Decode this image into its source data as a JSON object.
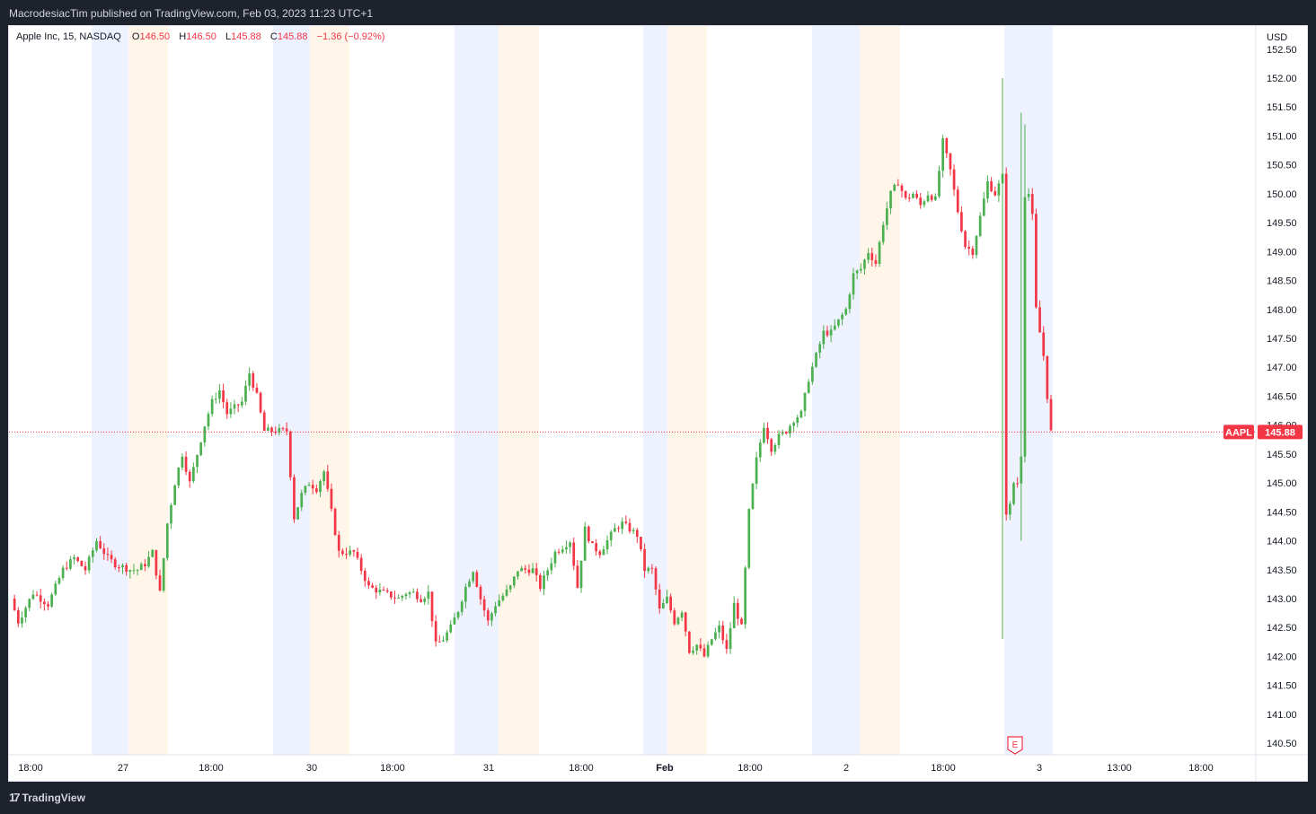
{
  "header": {
    "publish_text": "MacrodesiacTim published on TradingView.com, Feb 03, 2023 11:23 UTC+1"
  },
  "legend": {
    "symbol": "Apple Inc, 15, NASDAQ",
    "open_label": "O",
    "open": "146.50",
    "high_label": "H",
    "high": "146.50",
    "low_label": "L",
    "low": "145.88",
    "close_label": "C",
    "close": "145.88",
    "change": "−1.36 (−0.92%)"
  },
  "footer": {
    "brand": "TradingView",
    "brand_mark": "17"
  },
  "colors": {
    "up": "#26a69a",
    "up_candle": "#4caf50",
    "down": "#f23645",
    "premarket_band": "#eef2ff",
    "afterhours_band": "#fff6e9",
    "axis_text": "#131722",
    "price_line": "#f23645"
  },
  "chart_data": {
    "type": "candlestick",
    "symbol": "AAPL",
    "interval": "15",
    "exchange": "NASDAQ",
    "currency": "USD",
    "ylim": [
      140.3,
      152.9
    ],
    "y_ticks": [
      "140.50",
      "141.00",
      "141.50",
      "142.00",
      "142.50",
      "143.00",
      "143.50",
      "144.00",
      "144.50",
      "145.00",
      "145.50",
      "146.00",
      "146.50",
      "147.00",
      "147.50",
      "148.00",
      "148.50",
      "149.00",
      "149.50",
      "150.00",
      "150.50",
      "151.00",
      "151.50",
      "152.00",
      "152.50"
    ],
    "x_ticks": [
      "18:00",
      "27",
      "18:00",
      "30",
      "18:00",
      "31",
      "18:00",
      "Feb",
      "18:00",
      "2",
      "18:00",
      "3",
      "13:00",
      "18:00"
    ],
    "bold_x_ticks": [
      "Feb"
    ],
    "last_price": 145.88,
    "last_price_label": "145.88",
    "symbol_label": "AAPL",
    "earnings_marker": "E",
    "grid": false,
    "sessions": [
      {
        "type": "premarket",
        "from": "Jan 27 04:00",
        "to": "Jan 27 09:30"
      },
      {
        "type": "afterhours",
        "from": "Jan 27 16:00",
        "to": "Jan 27 20:00"
      },
      {
        "type": "premarket",
        "from": "Jan 30 04:00",
        "to": "Jan 30 09:30"
      },
      {
        "type": "afterhours",
        "from": "Jan 30 16:00",
        "to": "Jan 30 20:00"
      },
      {
        "type": "premarket",
        "from": "Jan 31 04:00",
        "to": "Jan 31 09:30"
      },
      {
        "type": "afterhours",
        "from": "Jan 31 16:00",
        "to": "Jan 31 20:00"
      },
      {
        "type": "premarket",
        "from": "Feb 1 04:00",
        "to": "Feb 1 09:30"
      },
      {
        "type": "afterhours",
        "from": "Feb 1 16:00",
        "to": "Feb 1 20:00"
      },
      {
        "type": "premarket",
        "from": "Feb 2 04:00",
        "to": "Feb 2 09:30"
      },
      {
        "type": "afterhours",
        "from": "Feb 2 16:00",
        "to": "Feb 2 20:00"
      },
      {
        "type": "premarket",
        "from": "Feb 3 04:00",
        "to": "Feb 3 09:30"
      }
    ],
    "path_points": [
      [
        0,
        143.0
      ],
      [
        2,
        142.6
      ],
      [
        6,
        143.1
      ],
      [
        10,
        142.9
      ],
      [
        14,
        143.5
      ],
      [
        17,
        143.7
      ],
      [
        20,
        143.5
      ],
      [
        23,
        144.0
      ],
      [
        26,
        143.7
      ],
      [
        28,
        143.6
      ],
      [
        32,
        143.5
      ],
      [
        34,
        143.5
      ],
      [
        36,
        143.6
      ],
      [
        38,
        143.8
      ],
      [
        40,
        143.1
      ],
      [
        42,
        144.3
      ],
      [
        44,
        145.0
      ],
      [
        46,
        145.5
      ],
      [
        48,
        145.0
      ],
      [
        52,
        146.0
      ],
      [
        54,
        146.4
      ],
      [
        56,
        146.6
      ],
      [
        58,
        146.2
      ],
      [
        62,
        146.4
      ],
      [
        64,
        146.9
      ],
      [
        66,
        146.5
      ],
      [
        68,
        145.9
      ],
      [
        70,
        145.9
      ],
      [
        72,
        145.9
      ],
      [
        74,
        145.9
      ],
      [
        76,
        144.4
      ],
      [
        78,
        144.8
      ],
      [
        80,
        145.0
      ],
      [
        82,
        144.9
      ],
      [
        84,
        145.2
      ],
      [
        86,
        144.5
      ],
      [
        88,
        143.8
      ],
      [
        92,
        143.8
      ],
      [
        94,
        143.5
      ],
      [
        96,
        143.2
      ],
      [
        100,
        143.1
      ],
      [
        104,
        143.0
      ],
      [
        106,
        143.1
      ],
      [
        108,
        143.1
      ],
      [
        110,
        143.0
      ],
      [
        112,
        143.1
      ],
      [
        114,
        142.2
      ],
      [
        116,
        142.3
      ],
      [
        118,
        142.5
      ],
      [
        120,
        142.8
      ],
      [
        122,
        143.2
      ],
      [
        124,
        143.5
      ],
      [
        126,
        143.0
      ],
      [
        128,
        142.6
      ],
      [
        130,
        142.9
      ],
      [
        134,
        143.2
      ],
      [
        136,
        143.5
      ],
      [
        140,
        143.5
      ],
      [
        142,
        143.2
      ],
      [
        146,
        143.8
      ],
      [
        150,
        144.0
      ],
      [
        152,
        143.2
      ],
      [
        154,
        144.2
      ],
      [
        156,
        143.9
      ],
      [
        158,
        143.8
      ],
      [
        160,
        144.0
      ],
      [
        162,
        144.2
      ],
      [
        164,
        144.3
      ],
      [
        166,
        144.2
      ],
      [
        168,
        144.1
      ],
      [
        170,
        143.5
      ],
      [
        172,
        143.5
      ],
      [
        174,
        142.8
      ],
      [
        176,
        143.0
      ],
      [
        178,
        142.6
      ],
      [
        180,
        142.8
      ],
      [
        182,
        142.1
      ],
      [
        184,
        142.2
      ],
      [
        186,
        142.0
      ],
      [
        188,
        142.3
      ],
      [
        190,
        142.5
      ],
      [
        192,
        142.1
      ],
      [
        194,
        142.9
      ],
      [
        196,
        142.5
      ],
      [
        198,
        144.5
      ],
      [
        200,
        145.4
      ],
      [
        202,
        146.0
      ],
      [
        204,
        145.6
      ],
      [
        206,
        145.8
      ],
      [
        208,
        145.9
      ],
      [
        210,
        146.1
      ],
      [
        212,
        146.2
      ],
      [
        214,
        146.8
      ],
      [
        216,
        147.2
      ],
      [
        218,
        147.6
      ],
      [
        220,
        147.6
      ],
      [
        222,
        147.8
      ],
      [
        224,
        148.0
      ],
      [
        226,
        148.6
      ],
      [
        228,
        148.7
      ],
      [
        230,
        149.0
      ],
      [
        232,
        148.8
      ],
      [
        234,
        149.5
      ],
      [
        236,
        150.0
      ],
      [
        238,
        150.2
      ],
      [
        240,
        149.9
      ],
      [
        242,
        150.0
      ],
      [
        244,
        149.8
      ],
      [
        246,
        150.0
      ],
      [
        248,
        149.9
      ],
      [
        250,
        150.9
      ],
      [
        252,
        150.4
      ],
      [
        254,
        149.7
      ],
      [
        256,
        149.1
      ],
      [
        258,
        149.0
      ],
      [
        260,
        149.6
      ],
      [
        262,
        150.2
      ],
      [
        264,
        150.0
      ],
      [
        266,
        150.3
      ],
      [
        267,
        144.5
      ],
      [
        268,
        144.6
      ],
      [
        269,
        145.0
      ],
      [
        270,
        145.0
      ],
      [
        271,
        145.5
      ],
      [
        272,
        150.0
      ],
      [
        273,
        150.0
      ],
      [
        274,
        149.6
      ],
      [
        275,
        148.0
      ],
      [
        276,
        147.6
      ],
      [
        277,
        147.2
      ],
      [
        278,
        146.5
      ],
      [
        279,
        145.88
      ]
    ]
  }
}
